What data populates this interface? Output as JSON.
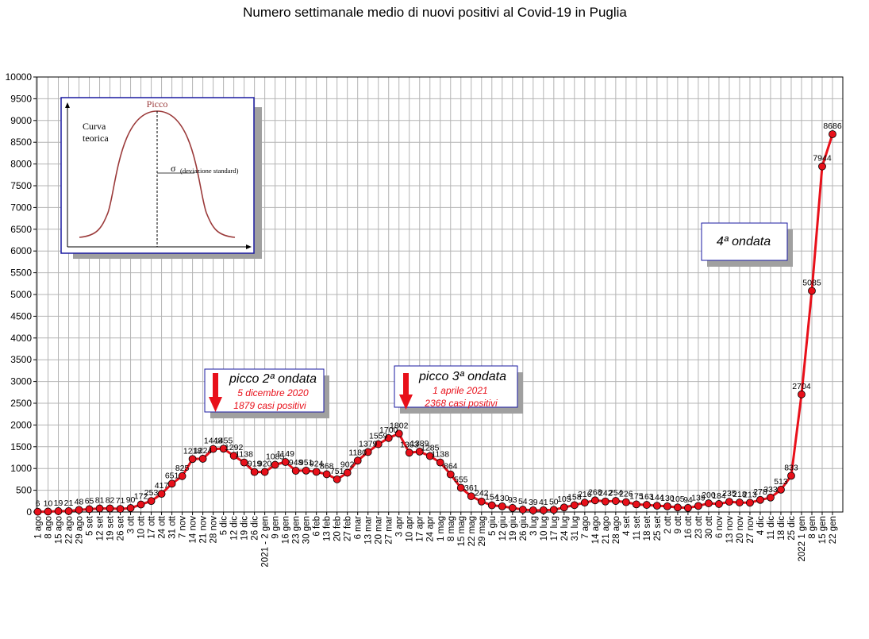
{
  "chart_data": {
    "type": "line",
    "title": "Numero settimanale medio di nuovi positivi al Covid-19 in Puglia",
    "xlabel": "",
    "ylabel": "",
    "ylim": [
      0,
      10000
    ],
    "ytick_step": 500,
    "grid": true,
    "line_color": "#e8101a",
    "marker_color": "#e8101a",
    "categories": [
      "1 ago",
      "8 ago",
      "15 ago",
      "22 ago",
      "29 ago",
      "5 set",
      "12 set",
      "19 set",
      "26 set",
      "3 ott",
      "10 ott",
      "17 ott",
      "24 ott",
      "31 ott",
      "7 nov",
      "14 nov",
      "21 nov",
      "28 nov",
      "5 dic",
      "12 dic",
      "19 dic",
      "26 dic",
      "2021 - 2 gen",
      "9 gen",
      "16 gen",
      "23 gen",
      "30 gen",
      "6 feb",
      "13 feb",
      "20 feb",
      "27 feb",
      "6 mar",
      "13 mar",
      "20 mar",
      "27 mar",
      "3 apr",
      "10 apr",
      "17 apr",
      "24 apr",
      "1 mag",
      "8 mag",
      "15 mag",
      "22 mag",
      "29 mag",
      "5 giu",
      "12 giu",
      "19 giu",
      "26 giu",
      "3 lug",
      "10 lug",
      "17 lug",
      "24 lug",
      "31 lug",
      "7 ago",
      "14 ago",
      "21 ago",
      "28 ago",
      "4 set",
      "11 set",
      "18 set",
      "25 set",
      "2 ott",
      "9 ott",
      "16 ott",
      "23 ott",
      "30 ott",
      "6 nov",
      "13 nov",
      "20 nov",
      "27 nov",
      "4 dic",
      "11 dic",
      "18 dic",
      "25 dic",
      "2022 1 gen",
      "8 gen",
      "15 gen",
      "22 gen"
    ],
    "series": [
      {
        "values": [
          6,
          10,
          19,
          21,
          48,
          65,
          81,
          82,
          71,
          90,
          172,
          253,
          417,
          651,
          825,
          1218,
          1224,
          1448,
          1455,
          1292,
          1138,
          919,
          920,
          1085,
          1149,
          948,
          951,
          924,
          868,
          751,
          902,
          1180,
          1379,
          1559,
          1700,
          1802,
          1363,
          1389,
          1285,
          1138,
          864,
          555,
          361,
          242,
          154,
          130,
          93,
          54,
          39,
          41,
          50,
          105,
          158,
          216,
          268,
          242,
          254,
          226,
          175,
          163,
          144,
          130,
          105,
          94,
          139,
          200,
          184,
          235,
          218,
          213,
          278,
          333,
          513,
          833,
          2704,
          5085,
          7944,
          8686
        ]
      }
    ],
    "annotations": [
      {
        "title": "picco 2ª ondata",
        "lines": [
          "5 dicembre 2020",
          "1879 casi positivi"
        ]
      },
      {
        "title": "picco 3ª ondata",
        "lines": [
          "1 aprile 2021",
          "2368 casi positivi"
        ]
      },
      {
        "title": "4ª ondata"
      }
    ],
    "inset": {
      "peak_label": "Picco",
      "curve_label_1": "Curva",
      "curve_label_2": "teorica",
      "sigma_symbol": "σ",
      "sigma_label": "(deviazione standard)"
    }
  }
}
